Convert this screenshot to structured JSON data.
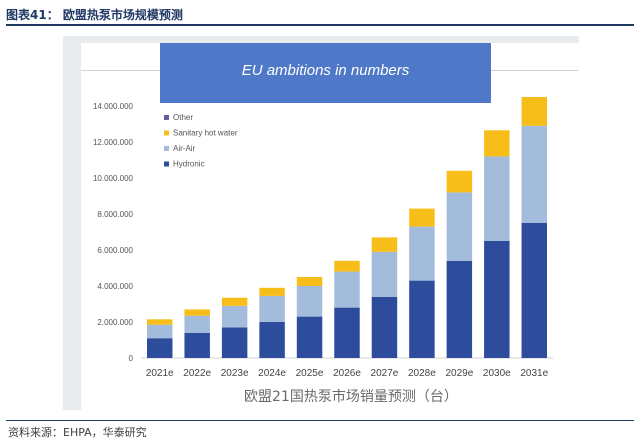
{
  "figure_title": "图表41：  欧盟热泵市场规模预测",
  "source": "资料来源：EHPA，华泰研究",
  "caption": "欧盟21国热泵市场销量预测（台）",
  "chart_data": {
    "type": "bar",
    "stacked": true,
    "title": "EU ambitions in numbers",
    "xlabel": "",
    "ylabel": "",
    "ylim": [
      0,
      14000000
    ],
    "yticks": [
      0,
      2000000,
      4000000,
      6000000,
      8000000,
      10000000,
      12000000,
      14000000
    ],
    "ytick_labels": [
      "0",
      "2.000.000",
      "4.000.000",
      "6.000.000",
      "8.000.000",
      "10.000.000",
      "12.000.000",
      "14.000.000"
    ],
    "grid": false,
    "legend_position": "top-left",
    "categories": [
      "2021e",
      "2022e",
      "2023e",
      "2024e",
      "2025e",
      "2026e",
      "2027e",
      "2028e",
      "2029e",
      "2030e",
      "2031e"
    ],
    "series": [
      {
        "name": "Hydronic",
        "color": "#2e4c9c",
        "values": [
          1100000,
          1400000,
          1700000,
          2000000,
          2300000,
          2800000,
          3400000,
          4300000,
          5400000,
          6500000,
          7500000
        ]
      },
      {
        "name": "Air-Air",
        "color": "#a4bcdb",
        "values": [
          750000,
          950000,
          1200000,
          1450000,
          1700000,
          2000000,
          2500000,
          3000000,
          3800000,
          4700000,
          5400000
        ]
      },
      {
        "name": "Sanitary hot water",
        "color": "#f7be1a",
        "values": [
          300000,
          350000,
          450000,
          450000,
          500000,
          600000,
          800000,
          1000000,
          1200000,
          1450000,
          1600000
        ]
      },
      {
        "name": "Other",
        "color": "#6b5aa0",
        "values": [
          0,
          0,
          0,
          0,
          0,
          0,
          0,
          0,
          0,
          0,
          0
        ]
      }
    ],
    "legend_order": [
      "Other",
      "Sanitary hot water",
      "Air-Air",
      "Hydronic"
    ]
  }
}
